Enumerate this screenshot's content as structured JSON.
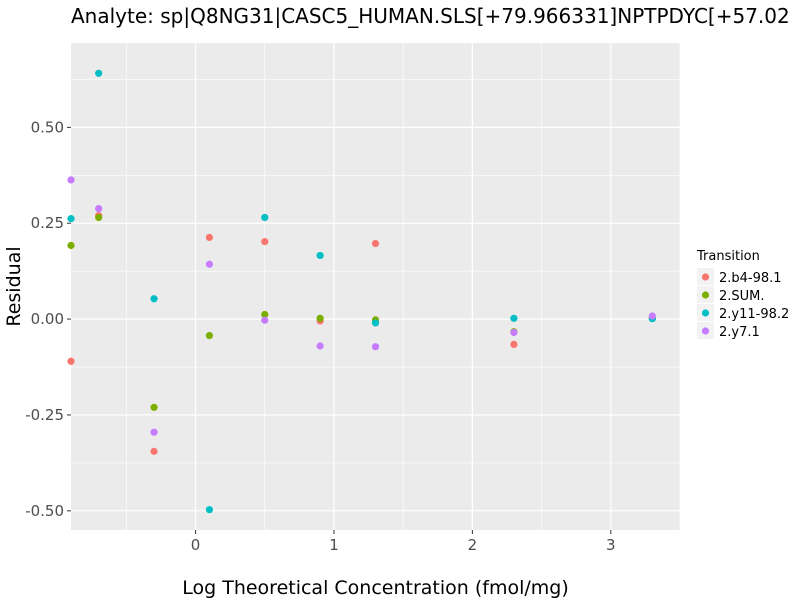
{
  "chart_data": {
    "type": "scatter",
    "title": "Analyte: sp|Q8NG31|CASC5_HUMAN.SLS[+79.966331]NPTPDYC[+57.02",
    "xlabel": "Log Theoretical Concentration (fmol/mg)",
    "ylabel": "Residual",
    "xlim": [
      -0.9,
      3.5
    ],
    "ylim": [
      -0.55,
      0.72
    ],
    "xticks": [
      0,
      1,
      2,
      3
    ],
    "xtick_labels": [
      "0",
      "1",
      "2",
      "3"
    ],
    "yticks": [
      -0.5,
      -0.25,
      0,
      0.25,
      0.5
    ],
    "ytick_labels": [
      "-0.50",
      "-0.25",
      "0.00",
      "0.25",
      "0.50"
    ],
    "grid": true,
    "legend": {
      "title": "Transition",
      "position": "right"
    },
    "series": [
      {
        "name": "2.b4-98.1",
        "color": "#F8766D",
        "points": [
          [
            -0.9,
            -0.11
          ],
          [
            -0.7,
            0.27
          ],
          [
            -0.3,
            -0.345
          ],
          [
            0.1,
            0.213
          ],
          [
            0.5,
            0.202
          ],
          [
            0.9,
            -0.005
          ],
          [
            1.3,
            0.197
          ],
          [
            2.3,
            -0.066
          ],
          [
            3.3,
            0.003
          ]
        ]
      },
      {
        "name": "2.SUM.",
        "color": "#7CAE00",
        "points": [
          [
            -0.9,
            0.192
          ],
          [
            -0.7,
            0.265
          ],
          [
            -0.3,
            -0.23
          ],
          [
            0.1,
            -0.043
          ],
          [
            0.5,
            0.012
          ],
          [
            0.9,
            0.002
          ],
          [
            1.3,
            -0.002
          ],
          [
            2.3,
            -0.033
          ],
          [
            3.3,
            0.002
          ]
        ]
      },
      {
        "name": "2.y11-98.2",
        "color": "#00BFC4",
        "points": [
          [
            -0.9,
            0.262
          ],
          [
            -0.7,
            0.641
          ],
          [
            -0.3,
            0.053
          ],
          [
            0.1,
            -0.497
          ],
          [
            0.5,
            0.265
          ],
          [
            0.9,
            0.166
          ],
          [
            1.3,
            -0.01
          ],
          [
            2.3,
            0.002
          ],
          [
            3.3,
            0.001
          ]
        ]
      },
      {
        "name": "2.y7.1",
        "color": "#C77CFF",
        "points": [
          [
            -0.9,
            0.363
          ],
          [
            -0.7,
            0.288
          ],
          [
            -0.3,
            -0.295
          ],
          [
            0.1,
            0.143
          ],
          [
            0.5,
            -0.003
          ],
          [
            0.9,
            -0.07
          ],
          [
            1.3,
            -0.072
          ],
          [
            2.3,
            -0.035
          ],
          [
            3.3,
            0.008
          ]
        ]
      }
    ]
  },
  "colors": {
    "panel_background": "#EBEBEB",
    "grid_major": "#FFFFFF",
    "tick_text": "#4D4D4D"
  }
}
